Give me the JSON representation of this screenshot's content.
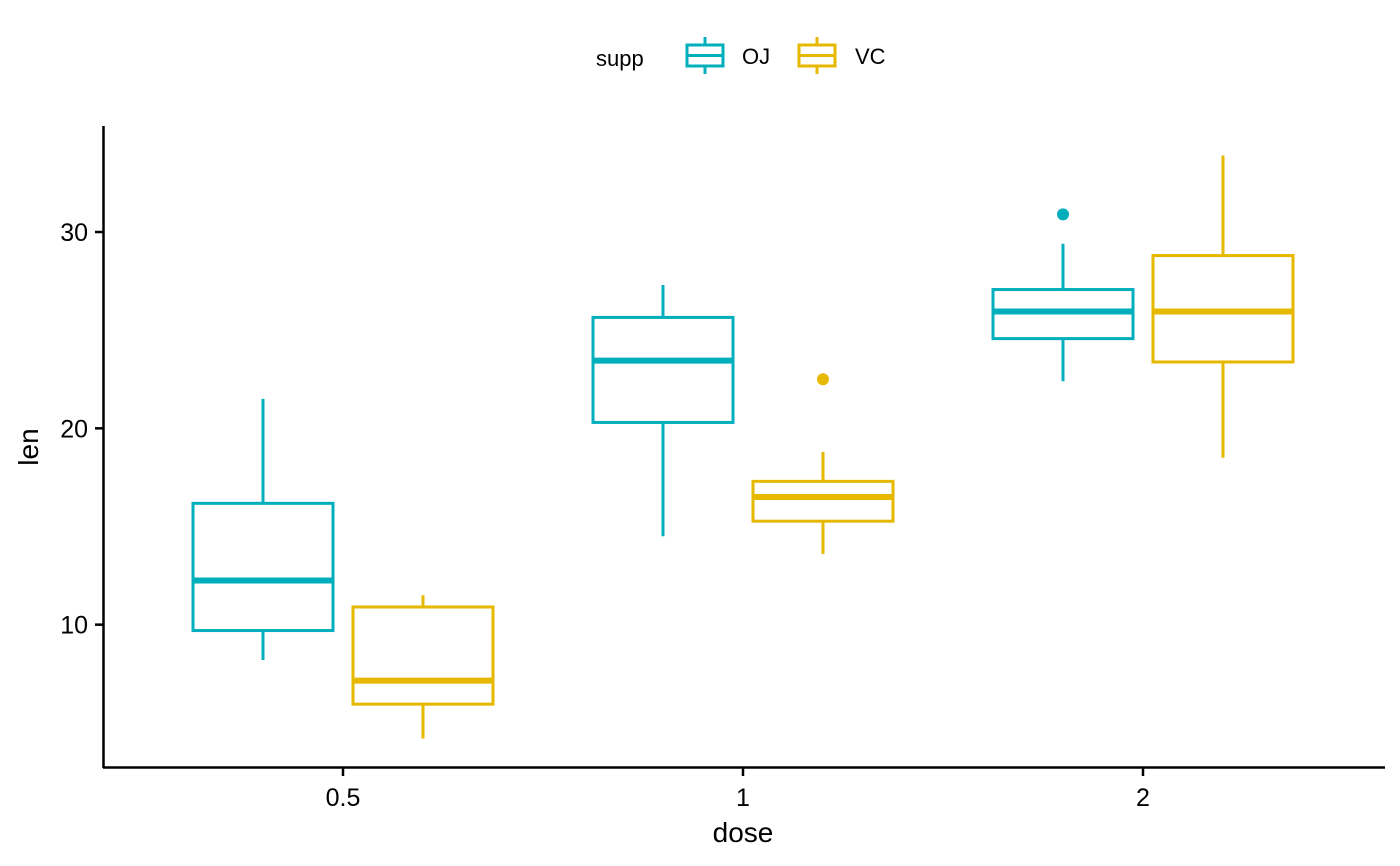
{
  "chart_data": {
    "type": "boxplot",
    "xlabel": "dose",
    "ylabel": "len",
    "categories": [
      "0.5",
      "1",
      "2"
    ],
    "ylim": [
      2.8,
      35.4
    ],
    "yticks": [
      10,
      20,
      30
    ],
    "grid": false,
    "legend": {
      "title": "supp",
      "position": "top"
    },
    "series": [
      {
        "name": "OJ",
        "color": "#00AFBB",
        "boxes": [
          {
            "category": "0.5",
            "whisker_low": 8.2,
            "q1": 9.7,
            "median": 12.25,
            "q3": 16.18,
            "whisker_high": 21.5,
            "outliers": []
          },
          {
            "category": "1",
            "whisker_low": 14.5,
            "q1": 20.3,
            "median": 23.45,
            "q3": 25.65,
            "whisker_high": 27.3,
            "outliers": []
          },
          {
            "category": "2",
            "whisker_low": 22.4,
            "q1": 24.57,
            "median": 25.95,
            "q3": 27.07,
            "whisker_high": 29.4,
            "outliers": [
              30.9
            ]
          }
        ]
      },
      {
        "name": "VC",
        "color": "#E7B800",
        "boxes": [
          {
            "category": "0.5",
            "whisker_low": 4.2,
            "q1": 5.95,
            "median": 7.15,
            "q3": 10.9,
            "whisker_high": 11.5,
            "outliers": []
          },
          {
            "category": "1",
            "whisker_low": 13.6,
            "q1": 15.27,
            "median": 16.5,
            "q3": 17.3,
            "whisker_high": 18.8,
            "outliers": [
              22.5
            ]
          },
          {
            "category": "2",
            "whisker_low": 18.5,
            "q1": 23.38,
            "median": 25.95,
            "q3": 28.8,
            "whisker_high": 33.9,
            "outliers": []
          }
        ]
      }
    ]
  }
}
